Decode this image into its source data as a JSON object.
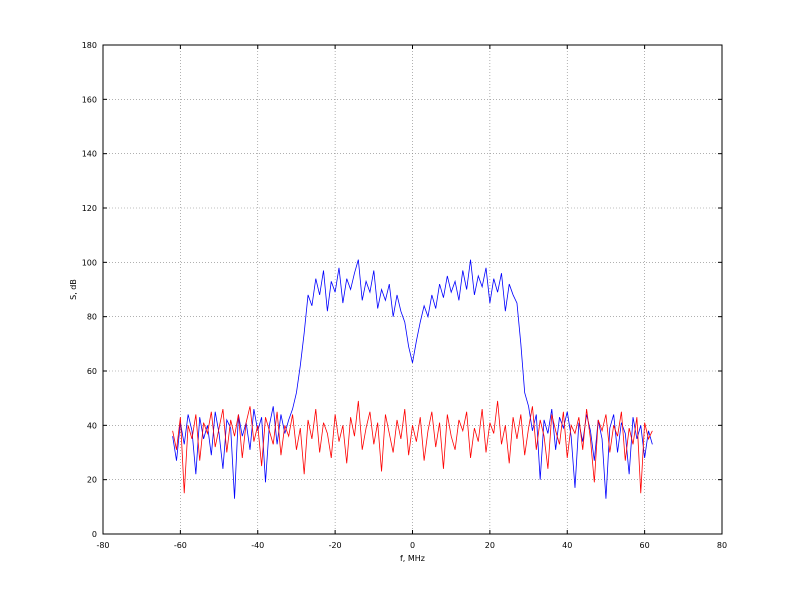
{
  "chart_data": {
    "type": "line",
    "title": "",
    "xlabel": "f, MHz",
    "ylabel": "S, dB",
    "xlim": [
      -80,
      80
    ],
    "ylim": [
      0,
      180
    ],
    "xticks": [
      -80,
      -60,
      -40,
      -20,
      0,
      20,
      40,
      60,
      80
    ],
    "yticks": [
      0,
      20,
      40,
      60,
      80,
      100,
      120,
      140,
      160,
      180
    ],
    "grid": true,
    "legend": "none",
    "series": [
      {
        "color": "#0000ff",
        "x": [
          -62,
          -61,
          -60,
          -59,
          -58,
          -57,
          -56,
          -55,
          -54,
          -53,
          -52,
          -51,
          -50,
          -49,
          -48,
          -47,
          -46,
          -45,
          -44,
          -43,
          -42,
          -41,
          -40,
          -39,
          -38,
          -37,
          -36,
          -35,
          -34,
          -33,
          -32,
          -31,
          -30,
          -29,
          -28,
          -27,
          -26,
          -25,
          -24,
          -23,
          -22,
          -21,
          -20,
          -19,
          -18,
          -17,
          -16,
          -15,
          -14,
          -13,
          -12,
          -11,
          -10,
          -9,
          -8,
          -7,
          -6,
          -5,
          -4,
          -3,
          -2,
          -1,
          0,
          1,
          2,
          3,
          4,
          5,
          6,
          7,
          8,
          9,
          10,
          11,
          12,
          13,
          14,
          15,
          16,
          17,
          18,
          19,
          20,
          21,
          22,
          23,
          24,
          25,
          26,
          27,
          28,
          29,
          30,
          31,
          32,
          33,
          34,
          35,
          36,
          37,
          38,
          39,
          40,
          41,
          42,
          43,
          44,
          45,
          46,
          47,
          48,
          49,
          50,
          51,
          52,
          53,
          54,
          55,
          56,
          57,
          58,
          59,
          60,
          61,
          62
        ],
        "y": [
          36,
          27,
          41,
          33,
          44,
          38,
          22,
          43,
          35,
          40,
          29,
          45,
          37,
          24,
          42,
          39,
          13,
          44,
          36,
          41,
          31,
          46,
          38,
          43,
          19,
          40,
          47,
          33,
          44,
          37,
          42,
          46,
          52,
          62,
          74,
          88,
          84,
          94,
          88,
          97,
          82,
          93,
          89,
          98,
          85,
          94,
          90,
          96,
          101,
          86,
          93,
          89,
          97,
          83,
          90,
          86,
          92,
          80,
          88,
          82,
          78,
          69,
          63,
          71,
          78,
          84,
          80,
          88,
          83,
          92,
          87,
          95,
          89,
          93,
          86,
          97,
          90,
          101,
          88,
          95,
          91,
          98,
          85,
          94,
          89,
          96,
          82,
          92,
          88,
          85,
          70,
          52,
          47,
          38,
          44,
          20,
          42,
          37,
          46,
          31,
          43,
          39,
          45,
          36,
          17,
          41,
          34,
          44,
          38,
          27,
          42,
          35,
          13,
          39,
          44,
          30,
          41,
          37,
          22,
          43,
          35,
          40,
          28,
          38,
          33
        ]
      },
      {
        "color": "#ff0000",
        "x": [
          -62,
          -61,
          -60,
          -59,
          -58,
          -57,
          -56,
          -55,
          -54,
          -53,
          -52,
          -51,
          -50,
          -49,
          -48,
          -47,
          -46,
          -45,
          -44,
          -43,
          -42,
          -41,
          -40,
          -39,
          -38,
          -37,
          -36,
          -35,
          -34,
          -33,
          -32,
          -31,
          -30,
          -29,
          -28,
          -27,
          -26,
          -25,
          -24,
          -23,
          -22,
          -21,
          -20,
          -19,
          -18,
          -17,
          -16,
          -15,
          -14,
          -13,
          -12,
          -11,
          -10,
          -9,
          -8,
          -7,
          -6,
          -5,
          -4,
          -3,
          -2,
          -1,
          0,
          1,
          2,
          3,
          4,
          5,
          6,
          7,
          8,
          9,
          10,
          11,
          12,
          13,
          14,
          15,
          16,
          17,
          18,
          19,
          20,
          21,
          22,
          23,
          24,
          25,
          26,
          27,
          28,
          29,
          30,
          31,
          32,
          33,
          34,
          35,
          36,
          37,
          38,
          39,
          40,
          41,
          42,
          43,
          44,
          45,
          46,
          47,
          48,
          49,
          50,
          51,
          52,
          53,
          54,
          55,
          56,
          57,
          58,
          59,
          60,
          61,
          62
        ],
        "y": [
          38,
          31,
          43,
          15,
          40,
          35,
          44,
          27,
          41,
          37,
          45,
          32,
          39,
          46,
          30,
          42,
          36,
          44,
          28,
          41,
          47,
          34,
          40,
          25,
          43,
          38,
          33,
          45,
          29,
          40,
          36,
          44,
          31,
          39,
          22,
          42,
          35,
          46,
          30,
          41,
          37,
          28,
          44,
          34,
          40,
          26,
          43,
          36,
          49,
          31,
          39,
          45,
          33,
          41,
          23,
          44,
          37,
          30,
          42,
          35,
          46,
          29,
          40,
          34,
          43,
          27,
          38,
          45,
          32,
          41,
          24,
          44,
          36,
          31,
          42,
          38,
          45,
          28,
          39,
          34,
          46,
          30,
          41,
          37,
          49,
          33,
          40,
          26,
          43,
          35,
          44,
          29,
          39,
          47,
          31,
          42,
          36,
          24,
          44,
          38,
          33,
          45,
          28,
          40,
          37,
          43,
          31,
          46,
          35,
          19,
          42,
          38,
          44,
          30,
          40,
          36,
          45,
          27,
          39,
          33,
          43,
          15,
          41,
          35,
          38
        ]
      }
    ]
  }
}
